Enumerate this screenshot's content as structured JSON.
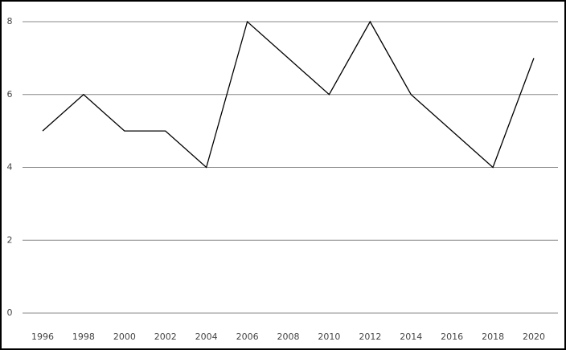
{
  "chart_data": {
    "type": "line",
    "categories": [
      "1996",
      "1998",
      "2000",
      "2002",
      "2004",
      "2006",
      "2008",
      "2010",
      "2012",
      "2014",
      "2016",
      "2018",
      "2020"
    ],
    "values": [
      5,
      6,
      5,
      5,
      4,
      8,
      7,
      6,
      8,
      6,
      5,
      4,
      7
    ],
    "color": "#000000",
    "ylim": [
      0,
      8
    ],
    "yticks": [
      0,
      2,
      4,
      6,
      8
    ],
    "grid": true
  }
}
